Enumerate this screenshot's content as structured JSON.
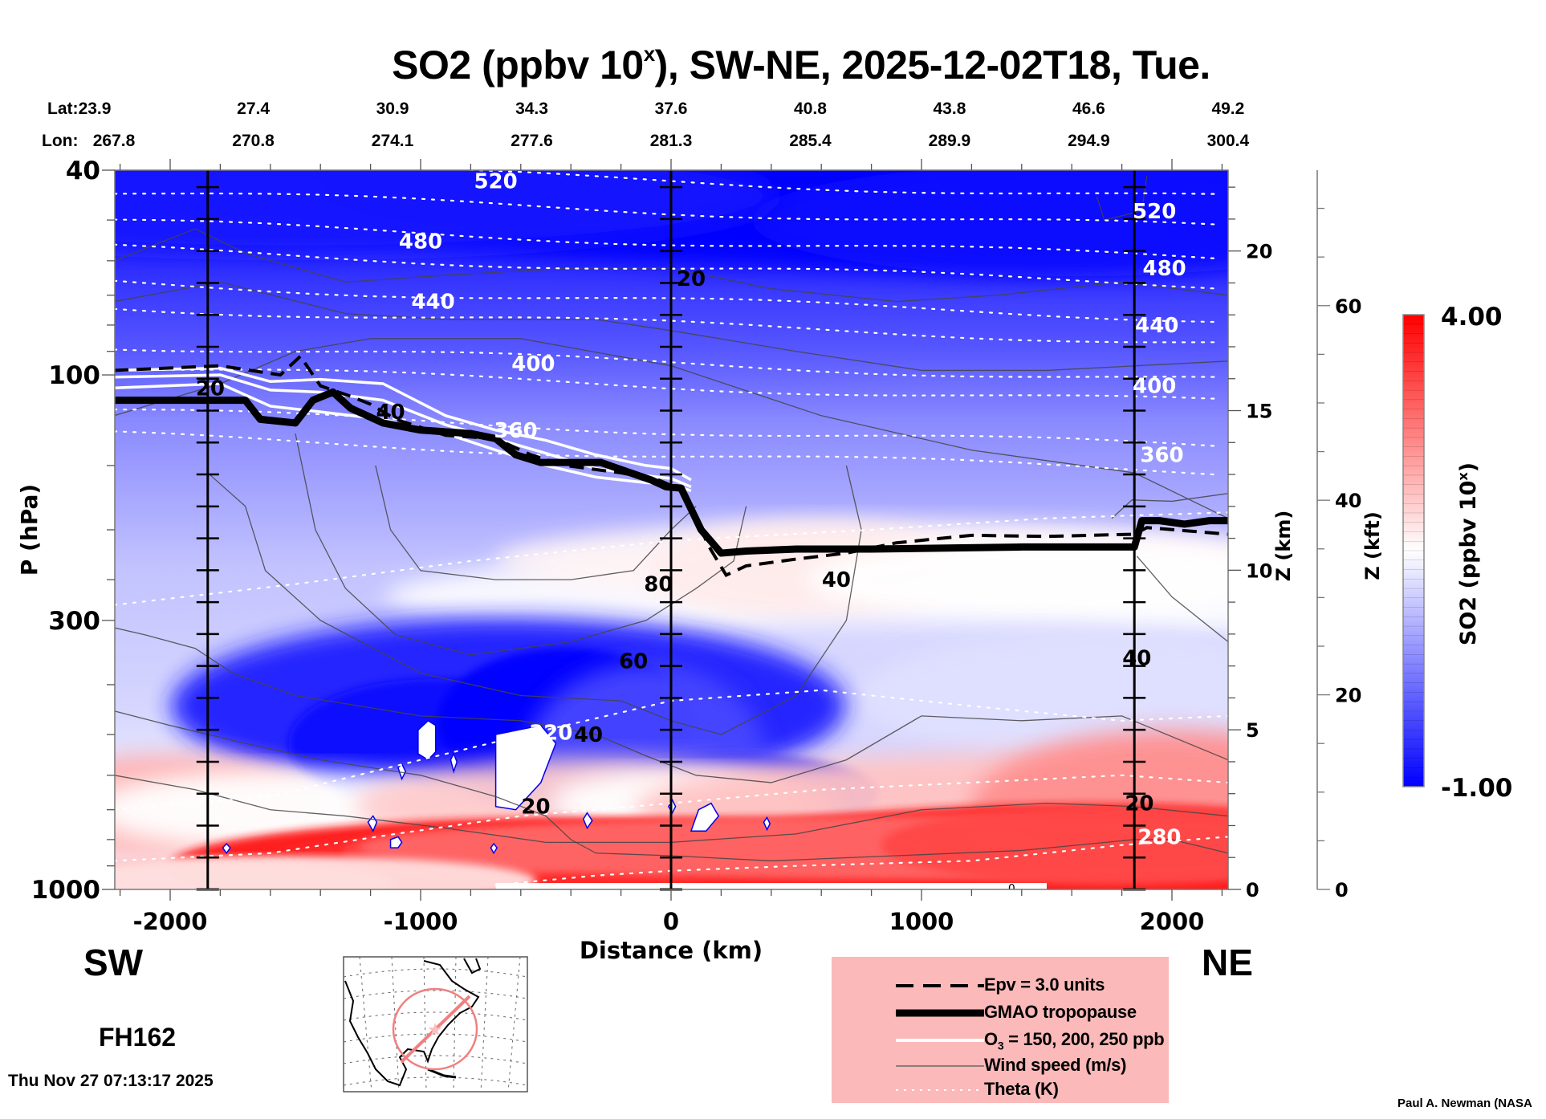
{
  "chart_data": {
    "type": "heatmap",
    "title": "SO2 (ppbv 10",
    "title_sup": "x",
    "title_rest": "), SW-NE, 2025-12-02T18, Tue.",
    "xlabel": "Distance (km)",
    "ylabel": "P (hPa)",
    "xlim": [
      -2224,
      2224
    ],
    "ylim_hpa": [
      1000,
      40
    ],
    "y_scale": "log",
    "x_ticks": [
      -2000,
      -1000,
      0,
      1000,
      2000
    ],
    "x_tick_labels": [
      "-2000",
      "-1000",
      "0",
      "1000",
      "2000"
    ],
    "y_ticks": [
      40,
      100,
      300,
      1000
    ],
    "y_tick_labels": [
      "40",
      "100",
      "300",
      "1000"
    ],
    "z_km_axis": {
      "label": "Z (km)",
      "ticks": [
        0,
        5,
        10,
        15,
        20
      ],
      "tick_labels": [
        "0",
        "5",
        "10",
        "15",
        "20"
      ]
    },
    "z_kft_axis": {
      "label": "Z (kft)",
      "ticks": [
        0,
        20,
        40,
        60
      ],
      "tick_labels": [
        "0",
        "20",
        "40",
        "60"
      ]
    },
    "header": {
      "lat_label": "Lat:",
      "lon_label": "Lon:",
      "positions_km": [
        -2224,
        -1668,
        -1112,
        -556,
        0,
        556,
        1112,
        1668,
        2224
      ],
      "lat": [
        "23.9",
        "27.4",
        "30.9",
        "34.3",
        "37.6",
        "40.8",
        "43.8",
        "46.6",
        "49.2"
      ],
      "lon": [
        "267.8",
        "270.8",
        "274.1",
        "277.6",
        "281.3",
        "285.4",
        "289.9",
        "294.9",
        "300.4"
      ]
    },
    "vertical_profile_lines_km": [
      -1850,
      0,
      1850
    ],
    "colorbar": {
      "label": "SO2 (ppbv 10",
      "label_sup": "x",
      "label_end": ")",
      "min": -1.0,
      "max": 4.0,
      "min_label": "-1.00",
      "max_label": "4.00",
      "colors": [
        "#0000ff",
        "#ffffff",
        "#ff0000"
      ],
      "white_at": 1.5
    },
    "field_summary": [
      {
        "region": "stratosphere (40-100 hPa)",
        "value_range": [
          -1.0,
          -0.3
        ]
      },
      {
        "region": "upper troposphere SW",
        "value_range": [
          -0.4,
          0.2
        ]
      },
      {
        "region": "UT/LS NE of 0 km near 200-300 hPa",
        "value_range": [
          1.3,
          1.8
        ]
      },
      {
        "region": "mid-troposphere blue pocket -1200..-300 km, 400-600 hPa",
        "value_range": [
          -1.0,
          -0.5
        ]
      },
      {
        "region": "boundary layer (850-1000 hPa)",
        "value_range": [
          2.5,
          4.0
        ]
      }
    ],
    "theta_contours_K": [
      {
        "label": "520",
        "x_km": -700,
        "p": 42
      },
      {
        "label": "480",
        "x_km": -1000,
        "p": 55
      },
      {
        "label": "440",
        "x_km": -950,
        "p": 72
      },
      {
        "label": "400",
        "x_km": -550,
        "p": 95
      },
      {
        "label": "360",
        "x_km": -620,
        "p": 128
      },
      {
        "label": "320",
        "x_km": -480,
        "p": 495
      },
      {
        "label": "520",
        "x_km": 1930,
        "p": 48
      },
      {
        "label": "480",
        "x_km": 1970,
        "p": 62
      },
      {
        "label": "440",
        "x_km": 1940,
        "p": 80
      },
      {
        "label": "400",
        "x_km": 1930,
        "p": 105
      },
      {
        "label": "360",
        "x_km": 1960,
        "p": 143
      },
      {
        "label": "280",
        "x_km": 1950,
        "p": 790
      }
    ],
    "wind_speed_contours_ms": [
      {
        "label": "20",
        "x_km": -1840,
        "p": 106
      },
      {
        "label": "40",
        "x_km": -1120,
        "p": 118
      },
      {
        "label": "20",
        "x_km": 80,
        "p": 65
      },
      {
        "label": "80",
        "x_km": -50,
        "p": 255
      },
      {
        "label": "60",
        "x_km": -150,
        "p": 360
      },
      {
        "label": "40",
        "x_km": -330,
        "p": 500
      },
      {
        "label": "20",
        "x_km": -540,
        "p": 690
      },
      {
        "label": "40",
        "x_km": 660,
        "p": 250
      },
      {
        "label": "40",
        "x_km": 1860,
        "p": 355
      },
      {
        "label": "20",
        "x_km": 1870,
        "p": 680
      },
      {
        "label": "0",
        "x_km": 1360,
        "p": 980
      }
    ],
    "tropopause_gmao": {
      "x_km": [
        -2224,
        -1750,
        -1700,
        -1640,
        -1500,
        -1430,
        -1350,
        -1280,
        -1150,
        -1000,
        -800,
        -700,
        -620,
        -520,
        -420,
        -280,
        -80,
        -20,
        40,
        120,
        200,
        300,
        500,
        800,
        1100,
        1400,
        1700,
        1850,
        1880,
        1950,
        2050,
        2150,
        2224
      ],
      "p": [
        112,
        112,
        112,
        122,
        124,
        112,
        108,
        116,
        124,
        128,
        130,
        133,
        143,
        148,
        148,
        148,
        160,
        165,
        166,
        200,
        222,
        220,
        218,
        218,
        217,
        216,
        216,
        216,
        192,
        192,
        195,
        192,
        192
      ]
    },
    "epv_3_line": {
      "x_km": [
        -2224,
        -1800,
        -1560,
        -1480,
        -1400,
        -1280,
        -1200,
        -1100,
        -900,
        -700,
        -560,
        -420,
        -200,
        -50,
        50,
        150,
        220,
        300,
        500,
        700,
        900,
        1200,
        1500,
        1850,
        1900,
        2224
      ],
      "p": [
        98,
        96,
        100,
        92,
        105,
        110,
        114,
        122,
        131,
        133,
        143,
        150,
        155,
        160,
        168,
        215,
        245,
        235,
        228,
        222,
        212,
        205,
        206,
        204,
        198,
        204
      ]
    },
    "ozone_lines_ppb": [
      {
        "value": 150,
        "x_km": [
          -2224,
          -1800,
          -1600,
          -1400,
          -1150,
          -900,
          -700,
          -500,
          -300,
          -100,
          0,
          80
        ],
        "p": [
          98,
          97,
          103,
          102,
          104,
          120,
          128,
          134,
          143,
          150,
          152,
          160
        ]
      },
      {
        "value": 200,
        "x_km": [
          -2224,
          -1800,
          -1600,
          -1400,
          -1150,
          -900,
          -700,
          -500,
          -300,
          -100,
          0,
          80
        ],
        "p": [
          101,
          100,
          107,
          108,
          112,
          125,
          133,
          142,
          152,
          157,
          159,
          165
        ]
      },
      {
        "value": 250,
        "x_km": [
          -2224,
          -1800,
          -1600,
          -1400,
          -1150,
          -900,
          -700,
          -500,
          -300,
          -100,
          0,
          80
        ],
        "p": [
          106,
          104,
          115,
          118,
          122,
          130,
          140,
          150,
          158,
          162,
          163,
          168
        ]
      }
    ]
  },
  "labels": {
    "sw": "SW",
    "ne": "NE",
    "forecast_hour": "FH162",
    "timestamp": "Thu Nov 27 07:13:17 2025",
    "credit": "Paul A. Newman (NASA"
  },
  "legend": {
    "items": [
      {
        "style": "dashed",
        "label": "Epv = 3.0 units"
      },
      {
        "style": "thick",
        "label": "GMAO tropopause"
      },
      {
        "style": "white",
        "label": "O",
        "label_sub": "3",
        "label_rest": " = 150, 200, 250 ppb"
      },
      {
        "style": "thin",
        "label": "Wind speed (m/s)"
      },
      {
        "style": "dotted",
        "label": "Theta (K)"
      }
    ]
  },
  "inset_map": {
    "description": "North America polar stereographic locator map",
    "track_color": "#f08080"
  }
}
